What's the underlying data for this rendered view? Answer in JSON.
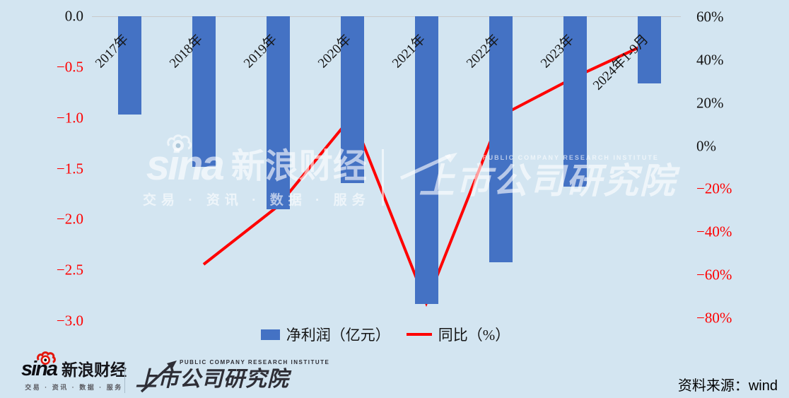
{
  "colors": {
    "background": "#d3e5f1",
    "bar": "#4472c4",
    "line": "#ff0000",
    "negative_tick": "#ff0000",
    "positive_tick": "#141414",
    "zero_line": "#c9c9c9"
  },
  "chart_data": {
    "type": "bar+line combo",
    "categories": [
      "2017年",
      "2018年",
      "2019年",
      "2020年",
      "2021年",
      "2022年",
      "2023年",
      "2024年1-9月"
    ],
    "series": [
      {
        "name": "净利润（亿元）",
        "type": "bar",
        "axis": "left",
        "color": "#4472c4",
        "values": [
          -0.97,
          -1.48,
          -1.9,
          -1.64,
          -2.83,
          -2.42,
          -1.68,
          -0.66
        ]
      },
      {
        "name": "同比（%）",
        "type": "line",
        "axis": "right",
        "color": "#ff0000",
        "values": [
          null,
          -55,
          -28,
          14,
          -73,
          14,
          32,
          48
        ]
      }
    ],
    "left_axis": {
      "range": [
        -3.0,
        0.0
      ],
      "ticks": [
        {
          "value": 0.0,
          "label": "0.0"
        },
        {
          "value": -0.5,
          "label": "-0.5"
        },
        {
          "value": -1.0,
          "label": "-1.0"
        },
        {
          "value": -1.5,
          "label": "-1.5"
        },
        {
          "value": -2.0,
          "label": "-2.0"
        },
        {
          "value": -2.5,
          "label": "-2.5"
        },
        {
          "value": -3.0,
          "label": "-3.0"
        }
      ]
    },
    "right_axis": {
      "range": [
        -80,
        60
      ],
      "ticks": [
        {
          "value": 60,
          "label": "60%"
        },
        {
          "value": 40,
          "label": "40%"
        },
        {
          "value": 20,
          "label": "20%"
        },
        {
          "value": 0,
          "label": "0%"
        },
        {
          "value": -20,
          "label": "-20%"
        },
        {
          "value": -40,
          "label": "-40%"
        },
        {
          "value": -60,
          "label": "-60%"
        },
        {
          "value": -80,
          "label": "-80%"
        }
      ]
    },
    "legend_position": "bottom",
    "grid": "top zero line only",
    "x_label_rotation_deg": -45
  },
  "legend": {
    "bar_label": "净利润（亿元）",
    "line_label": "同比（%）"
  },
  "watermark": {
    "sina_word": "sina",
    "sina_cn": "新浪财经",
    "tagline": "交易 · 资讯 · 数据 · 服务",
    "institute_en": "PUBLIC COMPANY RESEARCH INSTITUTE",
    "institute_cn": "上市公司研究院"
  },
  "footer": {
    "sina_word": "sina",
    "sina_cn": "新浪财经",
    "tagline": "交易 · 资讯 · 数据 · 服务",
    "institute_en": "PUBLIC COMPANY RESEARCH INSTITUTE",
    "institute_cn": "上市公司研究院",
    "source": "资料来源：wind"
  }
}
